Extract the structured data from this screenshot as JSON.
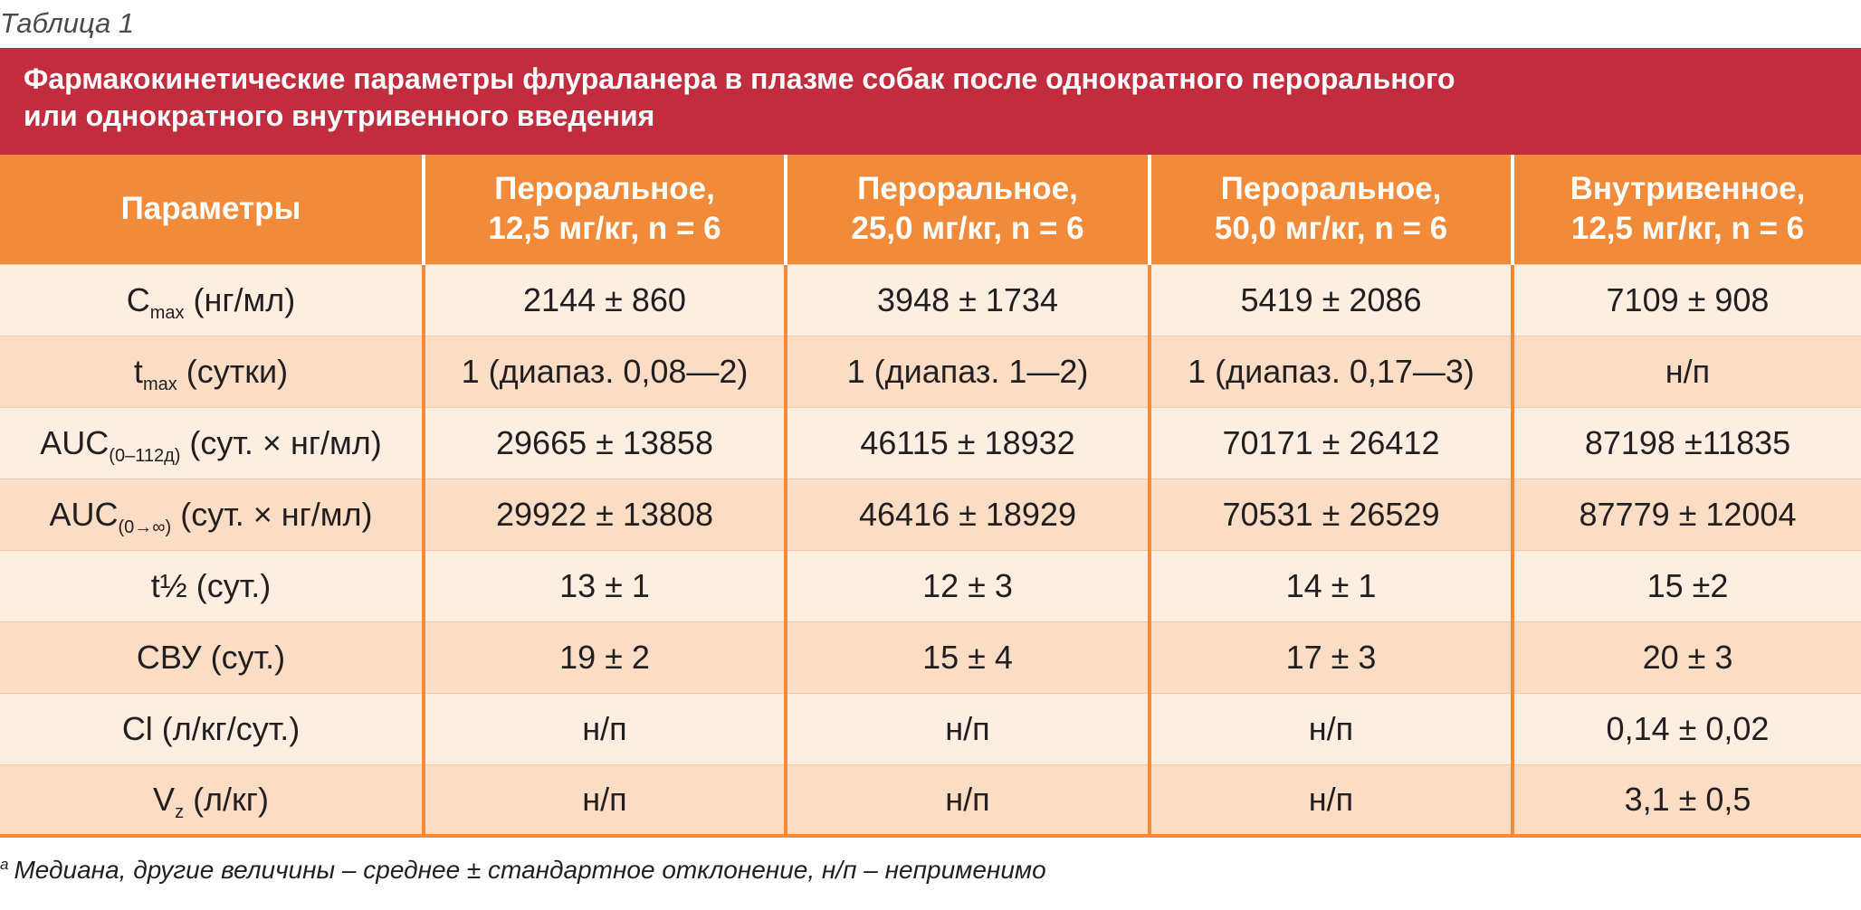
{
  "table_label": "Таблица 1",
  "title": {
    "line1": "Фармакокинетические параметры флураланера в плазме собак после однократного перорального",
    "line2": "или однократного внутривенного введения"
  },
  "header": {
    "params": "Параметры",
    "col1": {
      "line1": "Пероральное,",
      "line2": "12,5 мг/кг, n = 6"
    },
    "col2": {
      "line1": "Пероральное,",
      "line2": "25,0 мг/кг, n = 6"
    },
    "col3": {
      "line1": "Пероральное,",
      "line2": "50,0 мг/кг, n = 6"
    },
    "col4": {
      "line1": "Внутривенное,",
      "line2": "12,5 мг/кг, n = 6"
    }
  },
  "rows": [
    {
      "p_main": "C",
      "p_sub": "max",
      "p_rest": " (нг/мл)",
      "v1": "2144 ± 860",
      "v2": "3948 ± 1734",
      "v3": "5419 ± 2086",
      "v4": "7109 ± 908"
    },
    {
      "p_main": "t",
      "p_sub": "max",
      "p_rest": " (сутки)",
      "v1": "1 (диапаз. 0,08—2)",
      "v2": "1 (диапаз. 1—2)",
      "v3": "1 (диапаз. 0,17—3)",
      "v4": "н/п"
    },
    {
      "p_main": "AUC",
      "p_sub": "(0–112д)",
      "p_rest": " (сут. × нг/мл)",
      "v1": "29665 ± 13858",
      "v2": "46115 ± 18932",
      "v3": "70171 ± 26412",
      "v4": "87198 ±11835"
    },
    {
      "p_main": "AUC",
      "p_sub": "(0→∞)",
      "p_rest": " (сут. × нг/мл)",
      "v1": "29922 ± 13808",
      "v2": "46416 ± 18929",
      "v3": "70531 ± 26529",
      "v4": "87779 ± 12004"
    },
    {
      "p_main": "t½ (сут.)",
      "p_sub": "",
      "p_rest": "",
      "v1": "13 ± 1",
      "v2": "12 ± 3",
      "v3": "14 ± 1",
      "v4": "15 ±2"
    },
    {
      "p_main": "СВУ (сут.)",
      "p_sub": "",
      "p_rest": "",
      "v1": "19 ± 2",
      "v2": "15 ± 4",
      "v3": "17 ± 3",
      "v4": "20 ± 3"
    },
    {
      "p_main": "Cl (л/кг/сут.)",
      "p_sub": "",
      "p_rest": "",
      "v1": "н/п",
      "v2": "н/п",
      "v3": "н/п",
      "v4": "0,14 ± 0,02"
    },
    {
      "p_main": "V",
      "p_sub": "z",
      "p_rest": " (л/кг)",
      "v1": "н/п",
      "v2": "н/п",
      "v3": "н/п",
      "v4": "3,1 ± 0,5"
    }
  ],
  "footnote": {
    "mark": "a",
    "text": "Медиана, другие величины – среднее ± стандартное отклонение, н/п – неприменимо"
  }
}
